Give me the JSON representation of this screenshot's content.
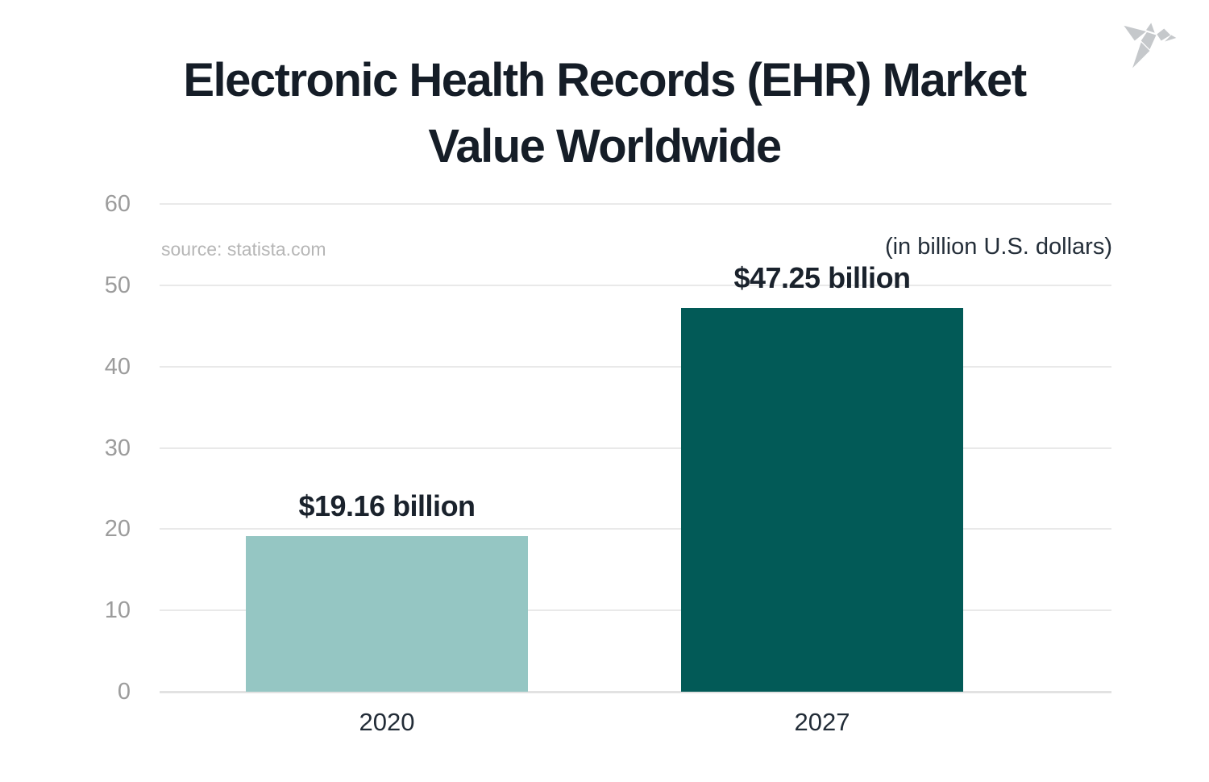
{
  "header": {
    "title_lines": [
      "Electronic Health Records (EHR) Market",
      "Value Worldwide"
    ],
    "logo_icon": "origami-bird-icon"
  },
  "annotations": {
    "source": "source: statista.com",
    "unit_note": "(in billion U.S. dollars)"
  },
  "colors": {
    "background": "#ffffff",
    "title_text": "#151d27",
    "bar_2020": "#95c6c3",
    "bar_2027": "#025a57",
    "gridline": "#e9e9e9",
    "y_axis_label": "#9c9c9c",
    "x_axis_label": "#222c37",
    "value_label": "#1a222c",
    "source_text": "#b6b6b6",
    "logo_gray": "#c5c8cb"
  },
  "chart_data": {
    "type": "bar",
    "title": "Electronic Health Records (EHR) Market Value Worldwide",
    "categories": [
      "2020",
      "2027"
    ],
    "values": [
      19.16,
      47.25
    ],
    "value_labels": [
      "$19.16 billion",
      "$47.25 billion"
    ],
    "unit_note": "(in billion U.S. dollars)",
    "source": "source: statista.com",
    "xlabel": "",
    "ylabel": "",
    "ylim": [
      0,
      60
    ],
    "yticks": [
      0,
      10,
      20,
      30,
      40,
      50,
      60
    ],
    "grid": true,
    "legend": false,
    "bar_colors": [
      "#95c6c3",
      "#025a57"
    ]
  }
}
